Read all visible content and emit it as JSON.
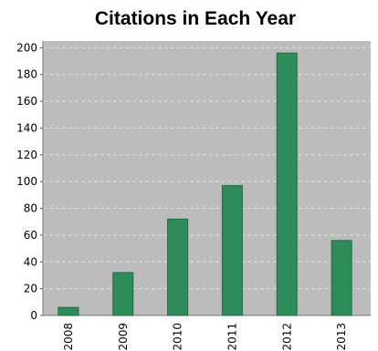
{
  "chart_data": {
    "type": "bar",
    "title": "Citations in Each Year",
    "xlabel": "",
    "ylabel": "",
    "categories": [
      "2008",
      "2009",
      "2010",
      "2011",
      "2012",
      "2013"
    ],
    "values": [
      6,
      32,
      72,
      97,
      196,
      56
    ],
    "ylim": [
      0,
      205
    ],
    "yticks": [
      0,
      20,
      40,
      60,
      80,
      100,
      120,
      140,
      160,
      180,
      200
    ],
    "grid": true,
    "legend": "none",
    "colors": {
      "bar": "#2e8b5a",
      "bar_edge": "#1d6b41",
      "plot_background": "#bcbcbc",
      "grid": "#e2e2e2"
    }
  }
}
